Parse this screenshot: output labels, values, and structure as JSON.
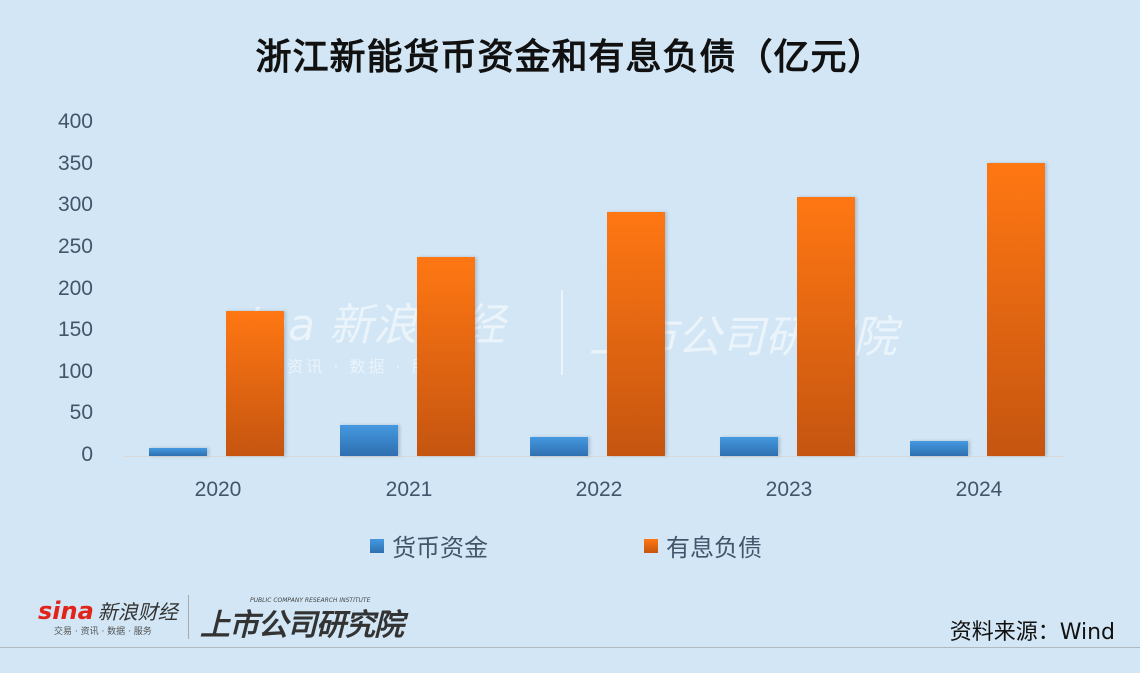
{
  "title": "浙江新能货币资金和有息负债（亿元）",
  "chart_data": {
    "type": "bar",
    "title": "浙江新能货币资金和有息负债（亿元）",
    "xlabel": "",
    "ylabel": "",
    "categories": [
      "2020",
      "2021",
      "2022",
      "2023",
      "2024"
    ],
    "series": [
      {
        "name": "货币资金",
        "color": "#3d86cc",
        "values": [
          10,
          37,
          23,
          23,
          18
        ]
      },
      {
        "name": "有息负债",
        "color": "#f26b0f",
        "values": [
          174,
          239,
          293,
          311,
          352
        ]
      }
    ],
    "ylim": [
      0,
      400
    ],
    "yticks": [
      "0",
      "50",
      "100",
      "150",
      "200",
      "250",
      "300",
      "350",
      "400"
    ],
    "grid": false,
    "legend_position": "bottom"
  },
  "legend": {
    "items": [
      {
        "label": "货币资金",
        "color": "#3d86cc"
      },
      {
        "label": "有息负债",
        "color": "#f26b0f"
      }
    ]
  },
  "watermark": {
    "sina_brand": "sina 新浪财经",
    "sina_sub": "交易 · 资讯 · 数据 · 服务",
    "institute": "上市公司研究院"
  },
  "footer": {
    "sina_logo_text": "sina",
    "sina_brand": "新浪财经",
    "sina_sub": "交易 · 资讯 · 数据 · 服务",
    "institute_name": "上市公司研究院",
    "institute_en": "PUBLIC COMPANY RESEARCH INSTITUTE",
    "source": "资料来源：Wind"
  }
}
